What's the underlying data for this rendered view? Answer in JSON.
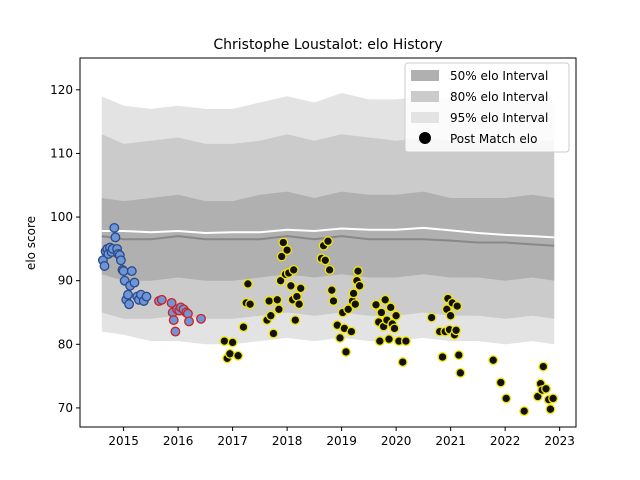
{
  "chart_data": {
    "type": "scatter",
    "title": "Christophe Loustalot: elo History",
    "xlabel": "",
    "ylabel": "elo score",
    "xlim": [
      2014.2,
      2023.3
    ],
    "ylim": [
      67,
      125
    ],
    "x_ticks": [
      2015,
      2016,
      2017,
      2018,
      2019,
      2020,
      2021,
      2022,
      2023
    ],
    "y_ticks": [
      70,
      80,
      90,
      100,
      110,
      120
    ],
    "grid": false,
    "legend": {
      "placement": "top-right",
      "entries": [
        "50% elo Interval",
        "80% elo Interval",
        "95% elo Interval",
        "Post Match elo"
      ]
    },
    "colors": {
      "band_50": "#b0b0b0",
      "band_80": "#cbcbcb",
      "band_95": "#e3e3e3",
      "median_line": "#888888",
      "mean_line": "#ffffff",
      "point_fill": "#111111",
      "point_fill_early": "#6e95d6",
      "edge_blue": "#2b4a8a",
      "edge_red": "#d02020",
      "edge_yellow": "#f2e600"
    },
    "bands": {
      "x": [
        2014.6,
        2015.0,
        2015.5,
        2016.0,
        2016.5,
        2017.0,
        2017.5,
        2018.0,
        2018.5,
        2019.0,
        2019.5,
        2020.0,
        2020.5,
        2021.0,
        2021.5,
        2022.0,
        2022.5,
        2022.9
      ],
      "p95_hi": [
        119,
        117.5,
        117,
        117.5,
        117,
        117,
        118,
        119,
        118,
        119.5,
        118.5,
        118.5,
        119,
        118.5,
        118.5,
        118,
        118.5,
        118
      ],
      "p80_hi": [
        113,
        111.5,
        112,
        112.5,
        111.5,
        111.5,
        112,
        113,
        112,
        113,
        112.5,
        112,
        112.5,
        112,
        112,
        112,
        112,
        112
      ],
      "p50_hi": [
        103,
        102.5,
        103,
        103.5,
        102.5,
        102.5,
        103.5,
        104,
        103,
        104,
        103.5,
        103.5,
        104,
        103,
        103,
        103,
        103.5,
        103
      ],
      "p50_lo": [
        91,
        90,
        90,
        90.5,
        90,
        90,
        90.5,
        91,
        90.5,
        91,
        90.5,
        90.5,
        91,
        90.5,
        90.5,
        90,
        90.5,
        90
      ],
      "p80_lo": [
        85,
        84,
        84,
        84.5,
        84,
        84,
        84.5,
        85,
        84.5,
        85,
        84.5,
        84.5,
        85,
        84.5,
        84.5,
        84,
        84.5,
        84
      ],
      "p95_lo": [
        82,
        81.5,
        80.5,
        80.5,
        80,
        80,
        80.5,
        81,
        80.5,
        81,
        80.5,
        80.5,
        81,
        80.5,
        80.5,
        80,
        80.5,
        80
      ],
      "median": [
        97,
        96.5,
        96.5,
        97,
        96.5,
        96.5,
        96.5,
        97,
        96.5,
        97,
        96.5,
        96.5,
        96.5,
        96.3,
        96,
        96,
        95.7,
        95.5
      ],
      "mean": [
        97.8,
        97.8,
        97.6,
        97.8,
        97.5,
        97.6,
        97.6,
        98.0,
        97.8,
        98.2,
        98.0,
        98.0,
        98.3,
        97.9,
        97.5,
        97.2,
        97.0,
        96.8
      ]
    },
    "series": [
      {
        "edge": "blue",
        "points": [
          [
            2014.62,
            93.2
          ],
          [
            2014.65,
            92.3
          ],
          [
            2014.67,
            94.6
          ],
          [
            2014.7,
            95.0
          ],
          [
            2014.72,
            94.2
          ],
          [
            2014.75,
            95.2
          ],
          [
            2014.78,
            94.5
          ],
          [
            2014.8,
            95.0
          ],
          [
            2014.83,
            98.3
          ],
          [
            2014.85,
            96.8
          ],
          [
            2014.88,
            95.0
          ],
          [
            2014.9,
            94.2
          ],
          [
            2014.93,
            94.0
          ],
          [
            2014.95,
            93.2
          ],
          [
            2014.98,
            91.7
          ],
          [
            2015.0,
            91.5
          ],
          [
            2015.02,
            90.0
          ],
          [
            2015.05,
            87.0
          ],
          [
            2015.08,
            87.8
          ],
          [
            2015.1,
            86.3
          ],
          [
            2015.12,
            89.2
          ],
          [
            2015.15,
            91.5
          ],
          [
            2015.2,
            89.7
          ],
          [
            2015.25,
            87.5
          ],
          [
            2015.28,
            87.0
          ],
          [
            2015.32,
            87.8
          ],
          [
            2015.37,
            86.8
          ],
          [
            2015.42,
            87.5
          ]
        ]
      },
      {
        "edge": "red",
        "points": [
          [
            2015.65,
            86.8
          ],
          [
            2015.7,
            87.0
          ],
          [
            2015.88,
            86.5
          ],
          [
            2015.9,
            85.0
          ],
          [
            2015.92,
            83.8
          ],
          [
            2015.95,
            82.0
          ],
          [
            2015.98,
            85.5
          ],
          [
            2016.02,
            85.3
          ],
          [
            2016.05,
            85.8
          ],
          [
            2016.1,
            85.5
          ],
          [
            2016.15,
            85.0
          ],
          [
            2016.18,
            84.8
          ],
          [
            2016.2,
            83.6
          ],
          [
            2016.42,
            84.0
          ]
        ]
      },
      {
        "edge": "yellow",
        "points": [
          [
            2016.85,
            80.5
          ],
          [
            2016.9,
            77.8
          ],
          [
            2016.95,
            78.5
          ],
          [
            2017.0,
            80.3
          ],
          [
            2017.1,
            78.2
          ],
          [
            2017.2,
            82.7
          ],
          [
            2017.25,
            86.5
          ],
          [
            2017.28,
            89.5
          ],
          [
            2017.32,
            86.3
          ],
          [
            2017.63,
            83.8
          ],
          [
            2017.67,
            86.8
          ],
          [
            2017.7,
            84.5
          ],
          [
            2017.75,
            81.7
          ],
          [
            2017.82,
            87.0
          ],
          [
            2017.85,
            85.5
          ],
          [
            2017.88,
            90.0
          ],
          [
            2017.9,
            93.8
          ],
          [
            2017.93,
            96.0
          ],
          [
            2017.97,
            91.0
          ],
          [
            2018.0,
            94.8
          ],
          [
            2018.03,
            91.2
          ],
          [
            2018.07,
            89.2
          ],
          [
            2018.1,
            87.0
          ],
          [
            2018.12,
            91.7
          ],
          [
            2018.15,
            83.8
          ],
          [
            2018.18,
            87.5
          ],
          [
            2018.22,
            86.3
          ],
          [
            2018.25,
            88.8
          ],
          [
            2018.63,
            93.5
          ],
          [
            2018.67,
            95.5
          ],
          [
            2018.7,
            93.2
          ],
          [
            2018.75,
            96.2
          ],
          [
            2018.78,
            91.7
          ],
          [
            2018.82,
            88.5
          ],
          [
            2018.85,
            86.8
          ],
          [
            2018.92,
            83.0
          ],
          [
            2018.97,
            81.0
          ],
          [
            2019.02,
            85.0
          ],
          [
            2019.05,
            82.5
          ],
          [
            2019.08,
            78.8
          ],
          [
            2019.12,
            85.5
          ],
          [
            2019.18,
            82.0
          ],
          [
            2019.2,
            86.8
          ],
          [
            2019.22,
            88.0
          ],
          [
            2019.25,
            86.3
          ],
          [
            2019.28,
            90.0
          ],
          [
            2019.3,
            91.5
          ],
          [
            2019.33,
            89.2
          ],
          [
            2019.63,
            86.2
          ],
          [
            2019.68,
            83.5
          ],
          [
            2019.7,
            80.5
          ],
          [
            2019.73,
            85.0
          ],
          [
            2019.77,
            82.8
          ],
          [
            2019.8,
            87.0
          ],
          [
            2019.83,
            83.8
          ],
          [
            2019.87,
            80.8
          ],
          [
            2019.9,
            85.8
          ],
          [
            2019.93,
            83.2
          ],
          [
            2019.97,
            82.5
          ],
          [
            2020.0,
            84.5
          ],
          [
            2020.05,
            80.5
          ],
          [
            2020.12,
            77.2
          ],
          [
            2020.18,
            80.5
          ],
          [
            2020.65,
            84.2
          ],
          [
            2020.8,
            82.0
          ],
          [
            2020.85,
            78.0
          ],
          [
            2020.9,
            82.0
          ],
          [
            2020.93,
            85.5
          ],
          [
            2020.95,
            87.2
          ],
          [
            2020.98,
            82.3
          ],
          [
            2021.0,
            84.5
          ],
          [
            2021.03,
            86.5
          ],
          [
            2021.07,
            81.5
          ],
          [
            2021.1,
            82.2
          ],
          [
            2021.12,
            86.0
          ],
          [
            2021.15,
            78.3
          ],
          [
            2021.18,
            75.5
          ],
          [
            2021.78,
            77.5
          ],
          [
            2021.92,
            74.0
          ],
          [
            2022.02,
            71.5
          ],
          [
            2022.35,
            69.5
          ],
          [
            2022.6,
            71.8
          ],
          [
            2022.65,
            73.8
          ],
          [
            2022.68,
            72.8
          ],
          [
            2022.7,
            76.5
          ],
          [
            2022.75,
            73.0
          ],
          [
            2022.8,
            71.3
          ],
          [
            2022.83,
            69.8
          ],
          [
            2022.88,
            71.5
          ]
        ]
      }
    ]
  }
}
